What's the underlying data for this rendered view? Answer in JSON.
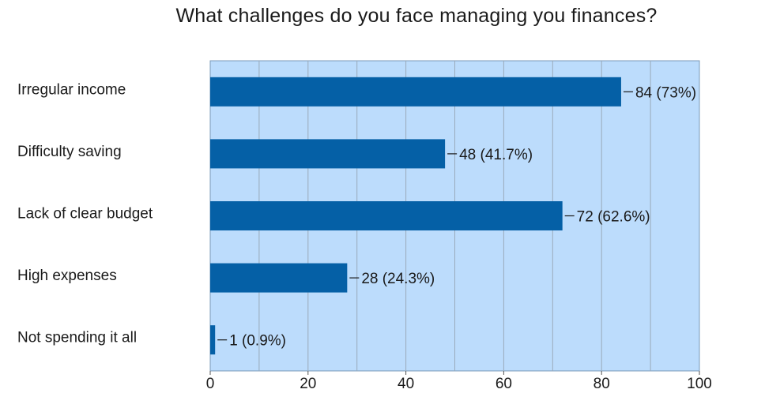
{
  "chart_data": {
    "type": "bar",
    "orientation": "horizontal",
    "title": "What challenges do you face managing you finances?",
    "categories": [
      "Irregular income",
      "Difficulty saving",
      "Lack of clear budget",
      "High expenses",
      "Not spending it all"
    ],
    "values": [
      84,
      48,
      72,
      28,
      1
    ],
    "value_labels": [
      "84 (73%)",
      "48 (41.7%)",
      "72 (62.6%)",
      "28 (24.3%)",
      "1 (0.9%)"
    ],
    "xlim": [
      0,
      100
    ],
    "xticks": [
      0,
      20,
      40,
      60,
      80,
      100
    ],
    "grid": true,
    "colors": {
      "bar": "#0560a6",
      "plot_background": "#bcdcfc",
      "gridline": "#9aaabb"
    }
  }
}
